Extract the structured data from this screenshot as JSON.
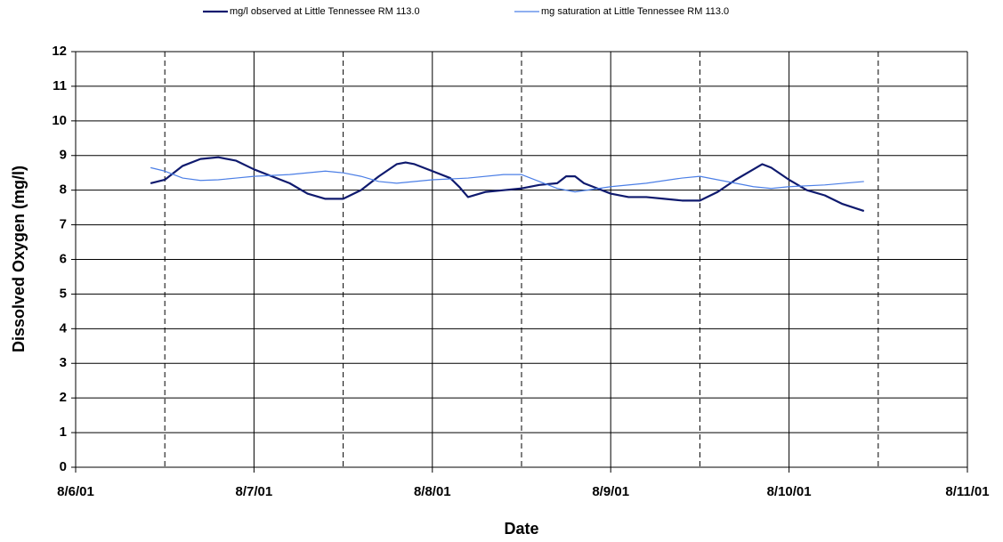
{
  "chart_data": {
    "type": "line",
    "x_label": "Date",
    "y_label": "Dissolved Oxygen (mg/l)",
    "xlim": [
      0,
      5
    ],
    "xticks": [
      {
        "value": 0,
        "label": "8/6/01"
      },
      {
        "value": 1,
        "label": "8/7/01"
      },
      {
        "value": 2,
        "label": "8/8/01"
      },
      {
        "value": 3,
        "label": "8/9/01"
      },
      {
        "value": 4,
        "label": "8/10/01"
      },
      {
        "value": 5,
        "label": "8/11/01"
      }
    ],
    "minor_xticks": [
      0.5,
      1.5,
      2.5,
      3.5,
      4.5
    ],
    "ylim": [
      0,
      12
    ],
    "yticks": [
      0,
      1,
      2,
      3,
      4,
      5,
      6,
      7,
      8,
      9,
      10,
      11,
      12
    ],
    "grid": true,
    "legend": "top",
    "series": [
      {
        "name": "mg/l observed at Little Tennessee RM 113.0",
        "color": "#0f1a6e",
        "x": [
          0.42,
          0.5,
          0.6,
          0.7,
          0.8,
          0.9,
          1.0,
          1.1,
          1.2,
          1.3,
          1.4,
          1.5,
          1.6,
          1.7,
          1.8,
          1.85,
          1.9,
          2.0,
          2.1,
          2.15,
          2.2,
          2.3,
          2.4,
          2.5,
          2.6,
          2.7,
          2.75,
          2.8,
          2.85,
          2.9,
          3.0,
          3.1,
          3.2,
          3.3,
          3.4,
          3.5,
          3.6,
          3.7,
          3.8,
          3.85,
          3.9,
          4.0,
          4.1,
          4.2,
          4.3,
          4.42
        ],
        "values": [
          8.2,
          8.3,
          8.7,
          8.9,
          8.95,
          8.85,
          8.6,
          8.4,
          8.2,
          7.9,
          7.75,
          7.75,
          8.0,
          8.4,
          8.75,
          8.8,
          8.75,
          8.55,
          8.35,
          8.1,
          7.8,
          7.95,
          8.0,
          8.05,
          8.15,
          8.2,
          8.4,
          8.4,
          8.2,
          8.1,
          7.9,
          7.8,
          7.8,
          7.75,
          7.7,
          7.7,
          7.95,
          8.3,
          8.6,
          8.75,
          8.65,
          8.3,
          8.0,
          7.85,
          7.6,
          7.4
        ]
      },
      {
        "name": "mg  saturation at Little Tennessee RM 113.0",
        "color": "#4c7fe6",
        "x": [
          0.42,
          0.5,
          0.6,
          0.7,
          0.8,
          0.9,
          1.0,
          1.2,
          1.4,
          1.5,
          1.6,
          1.7,
          1.8,
          2.0,
          2.2,
          2.4,
          2.5,
          2.6,
          2.7,
          2.8,
          3.0,
          3.2,
          3.4,
          3.5,
          3.6,
          3.7,
          3.8,
          3.9,
          4.0,
          4.2,
          4.42
        ],
        "values": [
          8.65,
          8.55,
          8.35,
          8.28,
          8.3,
          8.35,
          8.4,
          8.45,
          8.55,
          8.5,
          8.4,
          8.25,
          8.2,
          8.3,
          8.35,
          8.45,
          8.45,
          8.25,
          8.05,
          7.95,
          8.1,
          8.2,
          8.35,
          8.4,
          8.3,
          8.2,
          8.1,
          8.05,
          8.1,
          8.15,
          8.25
        ]
      }
    ]
  }
}
